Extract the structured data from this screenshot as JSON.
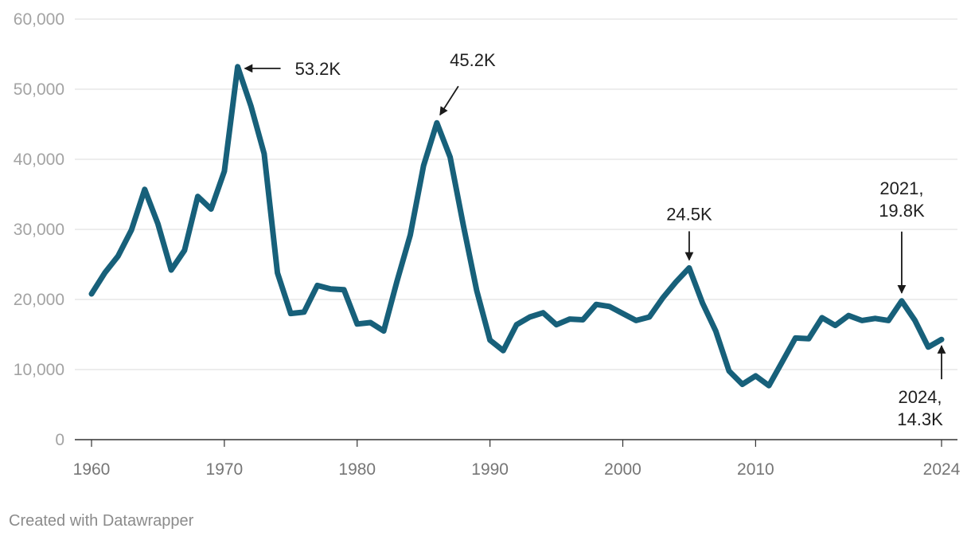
{
  "chart_data": {
    "type": "line",
    "title": "",
    "xlabel": "",
    "ylabel": "",
    "xlim": [
      1960,
      2024
    ],
    "ylim": [
      0,
      60000
    ],
    "grid": true,
    "line_color": "#17607a",
    "y_ticks": [
      {
        "value": 0,
        "label": "0"
      },
      {
        "value": 10000,
        "label": "10,000"
      },
      {
        "value": 20000,
        "label": "20,000"
      },
      {
        "value": 30000,
        "label": "30,000"
      },
      {
        "value": 40000,
        "label": "40,000"
      },
      {
        "value": 50000,
        "label": "50,000"
      },
      {
        "value": 60000,
        "label": "60,000"
      }
    ],
    "x_ticks": [
      {
        "value": 1960,
        "label": "1960"
      },
      {
        "value": 1970,
        "label": "1970"
      },
      {
        "value": 1980,
        "label": "1980"
      },
      {
        "value": 1990,
        "label": "1990"
      },
      {
        "value": 2000,
        "label": "2000"
      },
      {
        "value": 2010,
        "label": "2010"
      },
      {
        "value": 2024,
        "label": "2024"
      }
    ],
    "series": [
      {
        "name": "value",
        "x": [
          1960,
          1961,
          1962,
          1963,
          1964,
          1965,
          1966,
          1967,
          1968,
          1969,
          1970,
          1971,
          1972,
          1973,
          1974,
          1975,
          1976,
          1977,
          1978,
          1979,
          1980,
          1981,
          1982,
          1983,
          1984,
          1985,
          1986,
          1987,
          1988,
          1989,
          1990,
          1991,
          1992,
          1993,
          1994,
          1995,
          1996,
          1997,
          1998,
          1999,
          2000,
          2001,
          2002,
          2003,
          2004,
          2005,
          2006,
          2007,
          2008,
          2009,
          2010,
          2011,
          2012,
          2013,
          2014,
          2015,
          2016,
          2017,
          2018,
          2019,
          2020,
          2021,
          2022,
          2023,
          2024
        ],
        "values": [
          20800,
          23800,
          26200,
          29900,
          35700,
          30800,
          24200,
          27000,
          34700,
          32900,
          38300,
          53200,
          47600,
          40800,
          23800,
          18000,
          18200,
          22000,
          21500,
          21400,
          16500,
          16700,
          15500,
          22600,
          29200,
          39100,
          45200,
          40300,
          30500,
          21300,
          14200,
          12700,
          16400,
          17500,
          18100,
          16400,
          17200,
          17100,
          19300,
          19000,
          18000,
          17000,
          17500,
          20200,
          22500,
          24500,
          19500,
          15500,
          9800,
          7900,
          9100,
          7700,
          11100,
          14500,
          14400,
          17400,
          16300,
          17700,
          17000,
          17300,
          17000,
          19800,
          17000,
          13200,
          14300
        ]
      }
    ],
    "annotations": [
      {
        "x": 1971,
        "y": 53200,
        "text_lines": [
          "53.2K"
        ],
        "direction": "from-right"
      },
      {
        "x": 1986,
        "y": 45200,
        "text_lines": [
          "45.2K"
        ],
        "direction": "from-above-right"
      },
      {
        "x": 2005,
        "y": 24500,
        "text_lines": [
          "24.5K"
        ],
        "direction": "from-above"
      },
      {
        "x": 2021,
        "y": 19800,
        "text_lines": [
          "2021,",
          "19.8K"
        ],
        "direction": "from-above"
      },
      {
        "x": 2024,
        "y": 14300,
        "text_lines": [
          "2024,",
          "14.3K"
        ],
        "direction": "from-below"
      }
    ]
  },
  "footer": {
    "credit": "Created with Datawrapper"
  }
}
